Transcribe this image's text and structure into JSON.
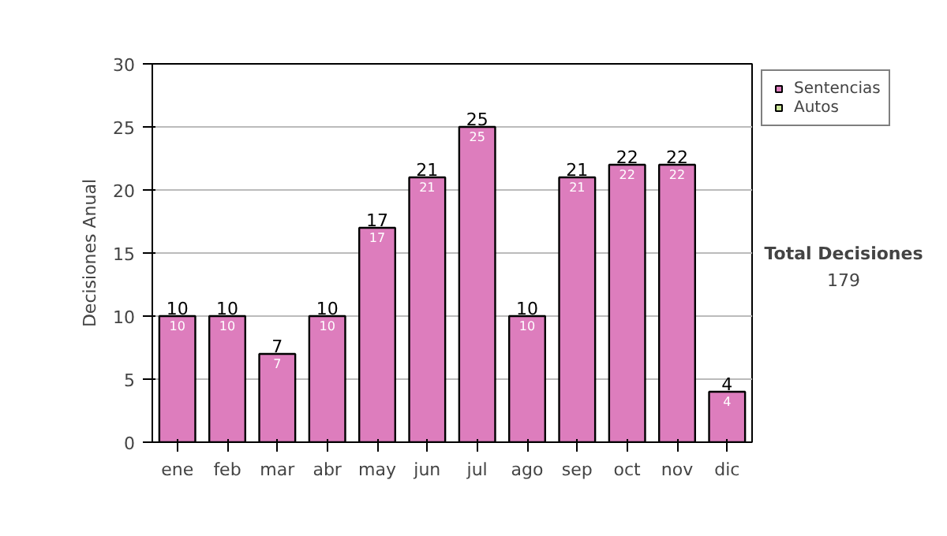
{
  "chart_data": {
    "type": "bar",
    "stacked": true,
    "ylabel": "Decisiones Anual",
    "categories": [
      "ene",
      "feb",
      "mar",
      "abr",
      "may",
      "jun",
      "jul",
      "ago",
      "sep",
      "oct",
      "nov",
      "dic"
    ],
    "series": [
      {
        "name": "Sentencias",
        "color": "#dd7dbd",
        "values": [
          10,
          10,
          7,
          10,
          17,
          21,
          25,
          10,
          21,
          22,
          22,
          4
        ]
      },
      {
        "name": "Autos",
        "color": "#cce699",
        "values": [
          null,
          null,
          null,
          null,
          null,
          null,
          null,
          null,
          null,
          null,
          null,
          null
        ]
      }
    ],
    "data_labels": true,
    "totals": [
      "10",
      "10",
      "7",
      "10",
      "17",
      "21",
      "25",
      "10",
      "21",
      "22",
      "22",
      "4"
    ],
    "ylim": [
      0,
      30
    ],
    "yticks": [
      0,
      5,
      10,
      15,
      20,
      25,
      30
    ],
    "grid": "y",
    "legend": "right",
    "annotations": [
      "Total Decisiones",
      "179"
    ]
  }
}
